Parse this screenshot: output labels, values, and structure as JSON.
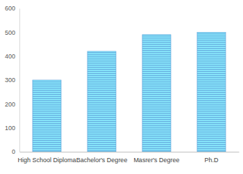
{
  "chart_data": {
    "type": "bar",
    "categories": [
      "High School Diploma",
      "Bachelor's Degree",
      "Masrer's Degree",
      "Ph.D"
    ],
    "values": [
      300,
      420,
      490,
      500
    ],
    "color": "#5b9bd5",
    "ylim": [
      0,
      600
    ],
    "yticks": [
      0,
      100,
      200,
      300,
      400,
      500,
      600
    ],
    "grid": false
  }
}
